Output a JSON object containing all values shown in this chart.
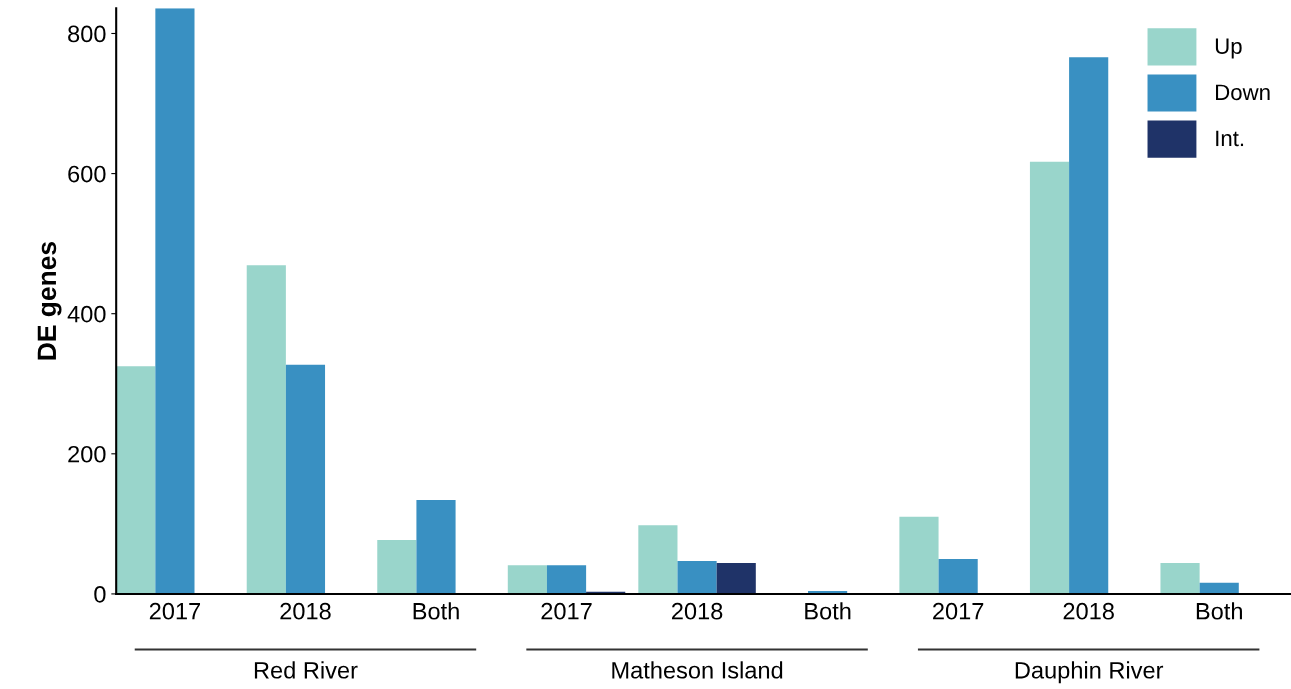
{
  "chart_data": {
    "type": "bar",
    "ylabel": "DE genes",
    "categories": [
      "2017",
      "2018",
      "Both",
      "2017",
      "2018",
      "Both",
      "2017",
      "2018",
      "Both"
    ],
    "series": [
      {
        "name": "Up",
        "color": "#99d5cb",
        "values": [
          325,
          469,
          77,
          41,
          98,
          0,
          110,
          617,
          44
        ]
      },
      {
        "name": "Down",
        "color": "#3990c2",
        "values": [
          836,
          327,
          134,
          41,
          47,
          4,
          50,
          766,
          16
        ]
      },
      {
        "name": "Int.",
        "color": "#1f3368",
        "values": [
          0,
          0,
          0,
          3,
          44,
          0,
          0,
          0,
          0
        ]
      }
    ],
    "annotations": [
      "Red River",
      "Matheson Island",
      "Dauphin River"
    ],
    "ylim": [
      0,
      836
    ],
    "yticks": [
      0,
      200,
      400,
      600,
      800
    ],
    "grid": false,
    "legend": "top right"
  }
}
